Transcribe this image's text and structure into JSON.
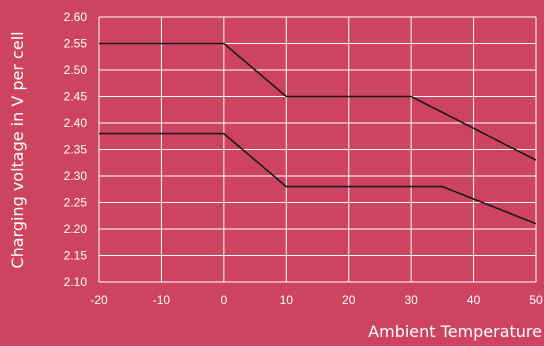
{
  "colors": {
    "background": "#cd4460",
    "grid": "#ffffff",
    "line": "#1a1a1a",
    "text": "#ffffff"
  },
  "chart_data": {
    "type": "line",
    "xlabel": "Ambient Temperature",
    "ylabel": "Charging voltage in V per cell",
    "xlim": [
      -20,
      50
    ],
    "ylim": [
      2.1,
      2.6
    ],
    "grid": true,
    "x_ticks": [
      "-20",
      "-10",
      "0",
      "10",
      "20",
      "30",
      "40",
      "50"
    ],
    "y_ticks": [
      "2.60",
      "2.55",
      "2.50",
      "2.45",
      "2.40",
      "2.35",
      "2.30",
      "2.25",
      "2.20",
      "2.15",
      "2.10"
    ],
    "series": [
      {
        "x": [
          -20,
          0,
          10,
          30,
          50
        ],
        "y": [
          2.55,
          2.55,
          2.45,
          2.45,
          2.33
        ]
      },
      {
        "x": [
          -20,
          0,
          10,
          35,
          50
        ],
        "y": [
          2.38,
          2.38,
          2.28,
          2.28,
          2.21
        ]
      }
    ]
  }
}
